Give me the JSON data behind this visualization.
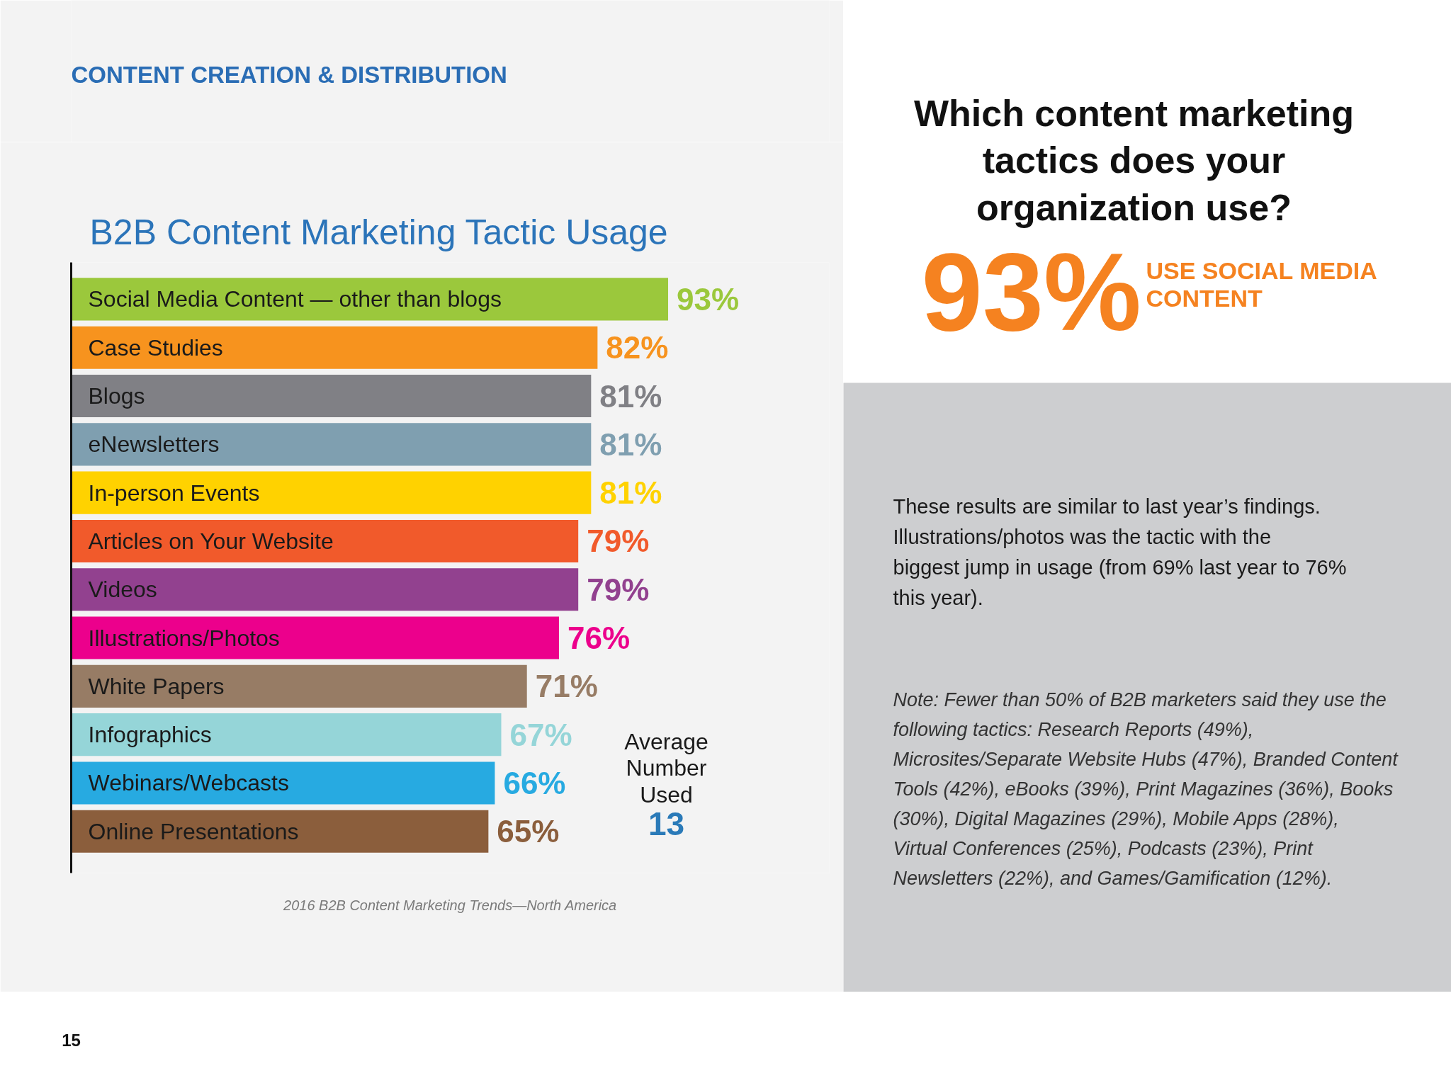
{
  "chart_data": {
    "type": "bar",
    "orientation": "horizontal",
    "title": "B2B Content Marketing Tactic Usage",
    "categories": [
      "Social Media Content — other than blogs",
      "Case Studies",
      "Blogs",
      "eNewsletters",
      "In-person Events",
      "Articles on Your Website",
      "Videos",
      "Illustrations/Photos",
      "White Papers",
      "Infographics",
      "Webinars/Webcasts",
      "Online Presentations"
    ],
    "values": [
      93,
      82,
      81,
      81,
      81,
      79,
      79,
      76,
      71,
      67,
      66,
      65
    ],
    "colors": [
      "#9bc83c",
      "#f7931e",
      "#808085",
      "#7f9fb0",
      "#ffd200",
      "#f15a2b",
      "#92418f",
      "#ec008c",
      "#977c65",
      "#95d5d8",
      "#27aae1",
      "#8b5e3c"
    ],
    "value_labels": [
      "93%",
      "82%",
      "81%",
      "81%",
      "81%",
      "79%",
      "79%",
      "76%",
      "71%",
      "67%",
      "66%",
      "65%"
    ],
    "tick_labels": "y",
    "annotations": [
      "CONTENT CREATION & DISTRIBUTION",
      "Average Number Used",
      "13",
      "2016 B2B Content Marketing Trends—North America",
      "15",
      "Which content marketing tactics does your organization use?",
      "93%",
      "USE SOCIAL MEDIA CONTENT",
      "These results are similar to last year’s findings. Illustrations/photos was the tactic with the biggest jump in usage (from 69% last year to 76% this year).",
      "Note: Fewer than 50% of B2B marketers said they use the following tactics: Research Reports (49%), Microsites/Separate Website Hubs (47%), Branded Content Tools (42%), eBooks (39%), Print Magazines (36%), Books (30%), Digital Magazines (29%), Mobile Apps (28%), Virtual Conferences (25%), Podcasts (23%), Print Newsletters (22%), and Games/Gamification (12%)."
    ]
  }
}
